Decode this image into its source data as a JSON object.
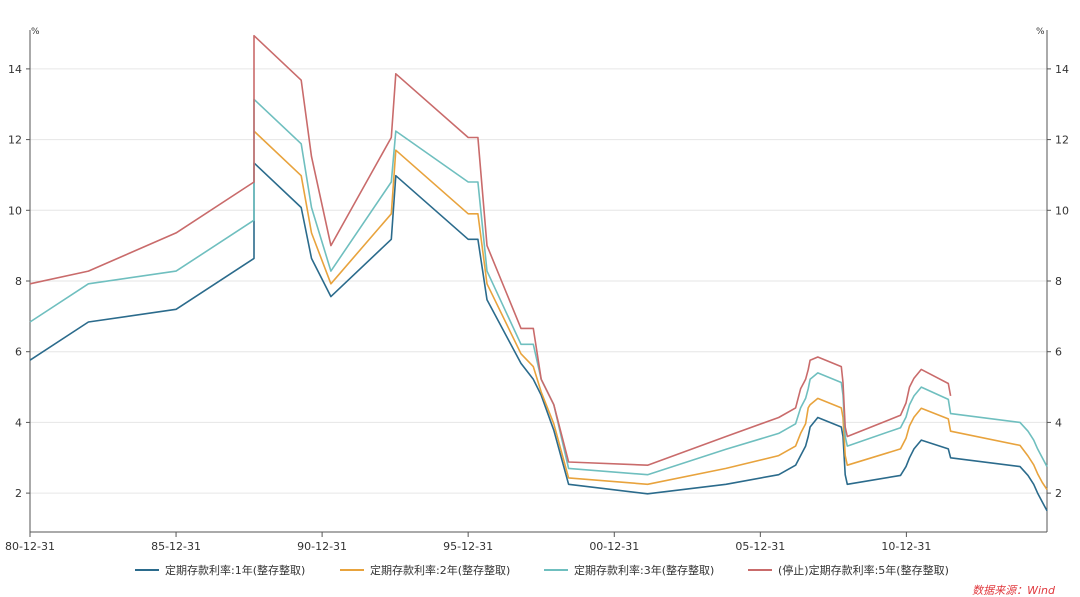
{
  "chart_data": {
    "type": "line",
    "title": "",
    "y_unit_left": "%",
    "y_unit_right": "%",
    "ylim": [
      0.9,
      15.1
    ],
    "y_ticks": [
      2,
      4,
      6,
      8,
      10,
      12,
      14
    ],
    "x_range": [
      "1980-12-31",
      "2015-10-24"
    ],
    "x_tick_labels": [
      {
        "date": "1980-12-31",
        "label": "80-12-31"
      },
      {
        "date": "1985-12-31",
        "label": "85-12-31"
      },
      {
        "date": "1990-12-31",
        "label": "90-12-31"
      },
      {
        "date": "1995-12-31",
        "label": "95-12-31"
      },
      {
        "date": "2000-12-31",
        "label": "00-12-31"
      },
      {
        "date": "2005-12-31",
        "label": "05-12-31"
      },
      {
        "date": "2010-12-31",
        "label": "10-12-31"
      }
    ],
    "grid": true,
    "legend_position": "bottom",
    "source": "数据来源：Wind",
    "series": [
      {
        "name": "定期存款利率:1年(整存整取)",
        "color": "#2b6b8c",
        "points": [
          [
            "1980-12-31",
            5.76
          ],
          [
            "1982-12-31",
            6.84
          ],
          [
            "1985-12-31",
            7.2
          ],
          [
            "1988-08-31",
            8.64
          ],
          [
            "1988-09-01",
            11.34
          ],
          [
            "1990-04-14",
            10.08
          ],
          [
            "1990-08-20",
            8.64
          ],
          [
            "1991-04-20",
            7.56
          ],
          [
            "1993-05-14",
            9.18
          ],
          [
            "1993-07-10",
            10.98
          ],
          [
            "1995-12-31",
            9.18
          ],
          [
            "1996-05-01",
            9.18
          ],
          [
            "1996-08-22",
            7.47
          ],
          [
            "1997-10-22",
            5.67
          ],
          [
            "1998-03-24",
            5.22
          ],
          [
            "1998-07-01",
            4.77
          ],
          [
            "1998-12-06",
            3.78
          ],
          [
            "1999-06-09",
            2.25
          ],
          [
            "2002-02-20",
            1.98
          ],
          [
            "2004-10-28",
            2.25
          ],
          [
            "2006-08-18",
            2.52
          ],
          [
            "2007-03-17",
            2.79
          ],
          [
            "2007-05-18",
            3.06
          ],
          [
            "2007-07-20",
            3.33
          ],
          [
            "2007-08-21",
            3.6
          ],
          [
            "2007-09-14",
            3.87
          ],
          [
            "2007-12-20",
            4.14
          ],
          [
            "2008-10-08",
            3.87
          ],
          [
            "2008-10-29",
            3.6
          ],
          [
            "2008-11-26",
            2.52
          ],
          [
            "2008-12-22",
            2.25
          ],
          [
            "2010-10-19",
            2.5
          ],
          [
            "2010-12-26",
            2.75
          ],
          [
            "2011-02-08",
            3.0
          ],
          [
            "2011-04-05",
            3.25
          ],
          [
            "2011-07-06",
            3.5
          ],
          [
            "2012-06-07",
            3.25
          ],
          [
            "2012-07-06",
            3.0
          ],
          [
            "2014-11-21",
            2.75
          ],
          [
            "2015-03-01",
            2.5
          ],
          [
            "2015-05-11",
            2.25
          ],
          [
            "2015-06-28",
            2.0
          ],
          [
            "2015-08-26",
            1.75
          ],
          [
            "2015-10-24",
            1.5
          ]
        ]
      },
      {
        "name": "定期存款利率:2年(整存整取)",
        "color": "#e8a33d",
        "points": [
          [
            "1988-09-01",
            12.24
          ],
          [
            "1990-04-14",
            10.98
          ],
          [
            "1990-08-20",
            9.36
          ],
          [
            "1991-04-20",
            7.92
          ],
          [
            "1993-05-14",
            9.9
          ],
          [
            "1993-07-10",
            11.7
          ],
          [
            "1995-12-31",
            9.9
          ],
          [
            "1996-05-01",
            9.9
          ],
          [
            "1996-08-22",
            7.92
          ],
          [
            "1997-10-22",
            5.94
          ],
          [
            "1998-03-24",
            5.58
          ],
          [
            "1998-07-01",
            4.86
          ],
          [
            "1998-12-06",
            3.96
          ],
          [
            "1999-06-09",
            2.43
          ],
          [
            "2002-02-20",
            2.25
          ],
          [
            "2004-10-28",
            2.7
          ],
          [
            "2006-08-18",
            3.06
          ],
          [
            "2007-03-17",
            3.33
          ],
          [
            "2007-05-18",
            3.69
          ],
          [
            "2007-07-20",
            3.96
          ],
          [
            "2007-08-21",
            4.41
          ],
          [
            "2007-09-14",
            4.5
          ],
          [
            "2007-12-20",
            4.68
          ],
          [
            "2008-10-08",
            4.41
          ],
          [
            "2008-10-29",
            4.14
          ],
          [
            "2008-11-26",
            3.06
          ],
          [
            "2008-12-22",
            2.79
          ],
          [
            "2010-10-19",
            3.25
          ],
          [
            "2010-12-26",
            3.55
          ],
          [
            "2011-02-08",
            3.9
          ],
          [
            "2011-04-05",
            4.15
          ],
          [
            "2011-07-06",
            4.4
          ],
          [
            "2012-06-07",
            4.1
          ],
          [
            "2012-07-06",
            3.75
          ],
          [
            "2014-11-21",
            3.35
          ],
          [
            "2015-03-01",
            3.05
          ],
          [
            "2015-05-11",
            2.8
          ],
          [
            "2015-06-28",
            2.55
          ],
          [
            "2015-08-26",
            2.3
          ],
          [
            "2015-10-24",
            2.1
          ]
        ]
      },
      {
        "name": "定期存款利率:3年(整存整取)",
        "color": "#6fbfbf",
        "points": [
          [
            "1980-12-31",
            6.84
          ],
          [
            "1982-12-31",
            7.92
          ],
          [
            "1985-12-31",
            8.28
          ],
          [
            "1988-08-31",
            9.72
          ],
          [
            "1988-09-01",
            13.14
          ],
          [
            "1990-04-14",
            11.88
          ],
          [
            "1990-08-20",
            10.08
          ],
          [
            "1991-04-20",
            8.28
          ],
          [
            "1993-05-14",
            10.8
          ],
          [
            "1993-07-10",
            12.24
          ],
          [
            "1995-12-31",
            10.8
          ],
          [
            "1996-05-01",
            10.8
          ],
          [
            "1996-08-22",
            8.28
          ],
          [
            "1997-10-22",
            6.21
          ],
          [
            "1998-03-24",
            6.21
          ],
          [
            "1998-07-01",
            5.22
          ],
          [
            "1998-12-06",
            4.5
          ],
          [
            "1999-06-09",
            2.7
          ],
          [
            "2002-02-20",
            2.52
          ],
          [
            "2004-10-28",
            3.24
          ],
          [
            "2006-08-18",
            3.69
          ],
          [
            "2007-03-17",
            3.96
          ],
          [
            "2007-05-18",
            4.41
          ],
          [
            "2007-07-20",
            4.68
          ],
          [
            "2007-08-21",
            4.95
          ],
          [
            "2007-09-14",
            5.22
          ],
          [
            "2007-12-20",
            5.4
          ],
          [
            "2008-10-08",
            5.13
          ],
          [
            "2008-10-29",
            4.77
          ],
          [
            "2008-11-26",
            3.6
          ],
          [
            "2008-12-22",
            3.33
          ],
          [
            "2010-10-19",
            3.85
          ],
          [
            "2010-12-26",
            4.15
          ],
          [
            "2011-02-08",
            4.5
          ],
          [
            "2011-04-05",
            4.75
          ],
          [
            "2011-07-06",
            5.0
          ],
          [
            "2012-06-07",
            4.65
          ],
          [
            "2012-07-06",
            4.25
          ],
          [
            "2014-11-21",
            4.0
          ],
          [
            "2015-03-01",
            3.75
          ],
          [
            "2015-05-11",
            3.5
          ],
          [
            "2015-06-28",
            3.25
          ],
          [
            "2015-08-26",
            3.0
          ],
          [
            "2015-10-24",
            2.75
          ]
        ]
      },
      {
        "name": "(停止)定期存款利率:5年(整存整取)",
        "color": "#c96b6b",
        "points": [
          [
            "1980-12-31",
            7.92
          ],
          [
            "1982-12-31",
            8.28
          ],
          [
            "1985-12-31",
            9.36
          ],
          [
            "1988-08-31",
            10.8
          ],
          [
            "1988-09-01",
            14.94
          ],
          [
            "1990-04-14",
            13.68
          ],
          [
            "1990-08-20",
            11.52
          ],
          [
            "1991-04-20",
            9.0
          ],
          [
            "1993-05-14",
            12.06
          ],
          [
            "1993-07-10",
            13.86
          ],
          [
            "1995-12-31",
            12.06
          ],
          [
            "1996-05-01",
            12.06
          ],
          [
            "1996-08-22",
            9.0
          ],
          [
            "1997-10-22",
            6.66
          ],
          [
            "1998-03-24",
            6.66
          ],
          [
            "1998-07-01",
            5.22
          ],
          [
            "1998-12-06",
            4.5
          ],
          [
            "1999-06-09",
            2.88
          ],
          [
            "2002-02-20",
            2.79
          ],
          [
            "2004-10-28",
            3.6
          ],
          [
            "2006-08-18",
            4.14
          ],
          [
            "2007-03-17",
            4.41
          ],
          [
            "2007-05-18",
            4.95
          ],
          [
            "2007-07-20",
            5.22
          ],
          [
            "2007-08-21",
            5.49
          ],
          [
            "2007-09-14",
            5.76
          ],
          [
            "2007-12-20",
            5.85
          ],
          [
            "2008-10-08",
            5.58
          ],
          [
            "2008-10-29",
            5.13
          ],
          [
            "2008-11-26",
            3.87
          ],
          [
            "2008-12-22",
            3.6
          ],
          [
            "2010-10-19",
            4.2
          ],
          [
            "2010-12-26",
            4.55
          ],
          [
            "2011-02-08",
            5.0
          ],
          [
            "2011-04-05",
            5.25
          ],
          [
            "2011-07-06",
            5.5
          ],
          [
            "2012-06-07",
            5.1
          ],
          [
            "2012-07-06",
            4.75
          ]
        ]
      }
    ]
  }
}
